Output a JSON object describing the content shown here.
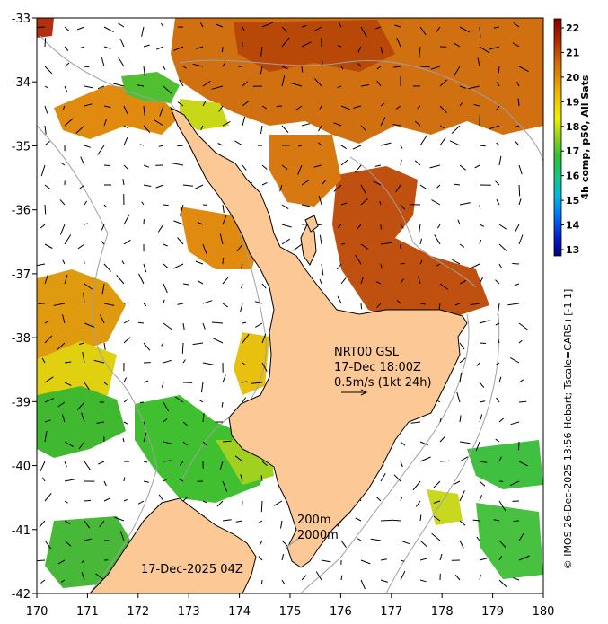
{
  "map": {
    "lon_range": [
      170,
      180
    ],
    "lat_range": [
      -42,
      -33
    ],
    "x_ticks": [
      "170",
      "171",
      "172",
      "173",
      "174",
      "175",
      "176",
      "177",
      "178",
      "179",
      "180"
    ],
    "y_ticks": [
      "-33",
      "-34",
      "-35",
      "-36",
      "-37",
      "-38",
      "-39",
      "-40",
      "-41",
      "-42"
    ],
    "land_color": "#fcc896",
    "no_data_color": "#ffffff",
    "contour_color": "#a0a0a0"
  },
  "colorbar": {
    "label": "4h comp, p50, All Sats",
    "min": 13,
    "max": 22,
    "ticks": [
      "22",
      "21",
      "20",
      "19",
      "18",
      "17",
      "16",
      "15",
      "14",
      "13"
    ],
    "colors": [
      "#00007f",
      "#0020d0",
      "#0070ff",
      "#00b8e0",
      "#10c888",
      "#30c030",
      "#90d020",
      "#f0f000",
      "#f0c000",
      "#e09000",
      "#d06000",
      "#b02000",
      "#800000"
    ]
  },
  "annotations": {
    "current_title": "NRT00 GSL",
    "current_time": "17-Dec 18:00Z",
    "current_scale": "0.5m/s (1kt 24h)",
    "depth_200": "200m",
    "depth_2000": "2000m",
    "image_date": "17-Dec-2025 04Z",
    "credit": "© IMOS 26-Dec-2025 13:56 Hobart; Tscale=CARS+[-1 1]"
  }
}
